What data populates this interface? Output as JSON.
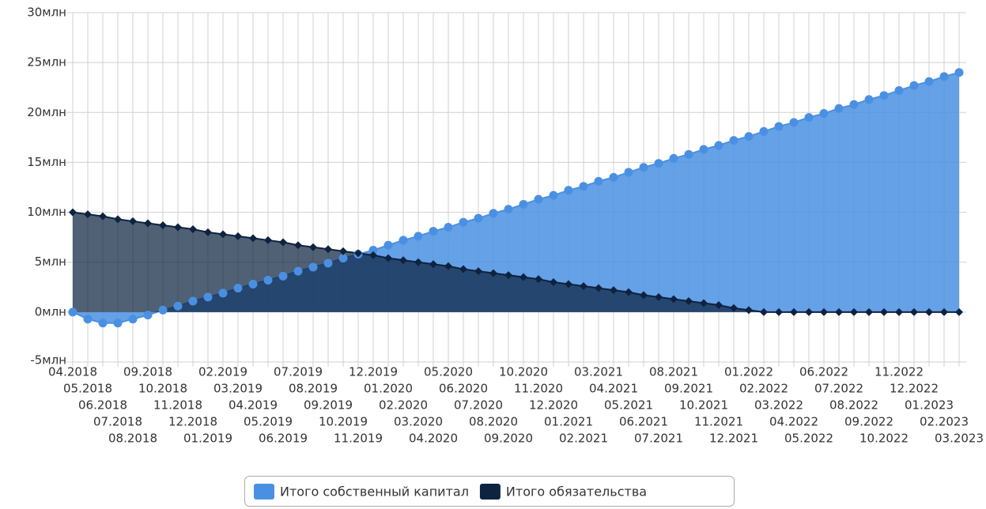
{
  "chart_data": {
    "type": "area",
    "categories": [
      "04.2018",
      "05.2018",
      "06.2018",
      "07.2018",
      "08.2018",
      "09.2018",
      "10.2018",
      "11.2018",
      "12.2018",
      "01.2019",
      "02.2019",
      "03.2019",
      "04.2019",
      "05.2019",
      "06.2019",
      "07.2019",
      "08.2019",
      "09.2019",
      "10.2019",
      "11.2019",
      "12.2019",
      "01.2020",
      "02.2020",
      "03.2020",
      "04.2020",
      "05.2020",
      "06.2020",
      "07.2020",
      "08.2020",
      "09.2020",
      "10.2020",
      "11.2020",
      "12.2020",
      "01.2021",
      "02.2021",
      "03.2021",
      "04.2021",
      "05.2021",
      "06.2021",
      "07.2021",
      "08.2021",
      "09.2021",
      "10.2021",
      "11.2021",
      "12.2021",
      "01.2022",
      "02.2022",
      "03.2022",
      "04.2022",
      "05.2022",
      "06.2022",
      "07.2022",
      "08.2022",
      "09.2022",
      "10.2022",
      "11.2022",
      "12.2022",
      "01.2023",
      "02.2023",
      "03.2023"
    ],
    "series": [
      {
        "name": "Итого собственный капитал",
        "color": "#4a90e2",
        "values": [
          0,
          -0.7,
          -1.1,
          -1.1,
          -0.7,
          -0.3,
          0.2,
          0.6,
          1.1,
          1.5,
          1.9,
          2.4,
          2.8,
          3.2,
          3.6,
          4.1,
          4.5,
          4.9,
          5.4,
          5.8,
          6.2,
          6.7,
          7.2,
          7.6,
          8.1,
          8.5,
          9.0,
          9.4,
          9.9,
          10.3,
          10.8,
          11.3,
          11.7,
          12.2,
          12.6,
          13.1,
          13.5,
          14.0,
          14.5,
          14.9,
          15.4,
          15.8,
          16.3,
          16.7,
          17.2,
          17.6,
          18.1,
          18.6,
          19.0,
          19.5,
          19.9,
          20.4,
          20.8,
          21.3,
          21.7,
          22.2,
          22.7,
          23.1,
          23.6,
          24.0
        ]
      },
      {
        "name": "Итого обязательства",
        "color": "#0d2340",
        "values": [
          10,
          9.8,
          9.6,
          9.3,
          9.1,
          8.9,
          8.7,
          8.5,
          8.3,
          8.0,
          7.8,
          7.6,
          7.4,
          7.2,
          7.0,
          6.7,
          6.5,
          6.3,
          6.1,
          5.9,
          5.7,
          5.4,
          5.2,
          5.0,
          4.8,
          4.6,
          4.3,
          4.1,
          3.9,
          3.7,
          3.5,
          3.3,
          3.0,
          2.8,
          2.6,
          2.4,
          2.2,
          2.0,
          1.7,
          1.5,
          1.3,
          1.1,
          0.9,
          0.7,
          0.4,
          0.2,
          0,
          0,
          0,
          0,
          0,
          0,
          0,
          0,
          0,
          0,
          0,
          0,
          0,
          0
        ]
      }
    ],
    "ylim": [
      -5,
      30
    ],
    "yticks": [
      {
        "value": -5,
        "label": "-5млн"
      },
      {
        "value": 0,
        "label": "0млн"
      },
      {
        "value": 5,
        "label": "5млн"
      },
      {
        "value": 10,
        "label": "10млн"
      },
      {
        "value": 15,
        "label": "15млн"
      },
      {
        "value": 20,
        "label": "20млн"
      },
      {
        "value": 25,
        "label": "25млн"
      },
      {
        "value": 30,
        "label": "30млн"
      }
    ],
    "grid": true,
    "legend": "bottom"
  }
}
